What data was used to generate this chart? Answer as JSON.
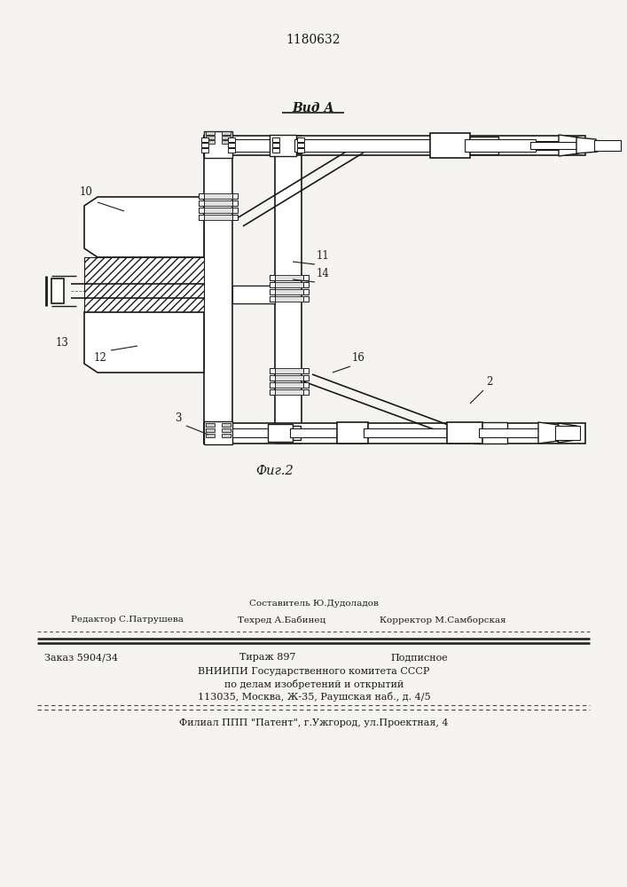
{
  "patent_number": "1180632",
  "view_label": "Вид А",
  "fig_label": "Фиг.2",
  "bg_color": "#f5f4f0",
  "line_color": "#1a1a1a",
  "footer": {
    "sup": "Составитель Ю.Дудоладов",
    "left": "Редактор С.Патрушева",
    "mid": "Техред А.Бабинец",
    "right": "Корректор М.Самборская",
    "order": "Заказ 5904/34",
    "tirazh": "Тираж 897",
    "podp": "Подписное",
    "vniipи": "ВНИИПИ Государственного комитета СССР",
    "dela": "по делам изобретений и открытий",
    "addr": "113035, Москва, Ж-35, Раушская наб., д. 4/5",
    "filial": "Филиал ППП \"Патент\", г.Ужгород, ул.Проектная, 4"
  }
}
